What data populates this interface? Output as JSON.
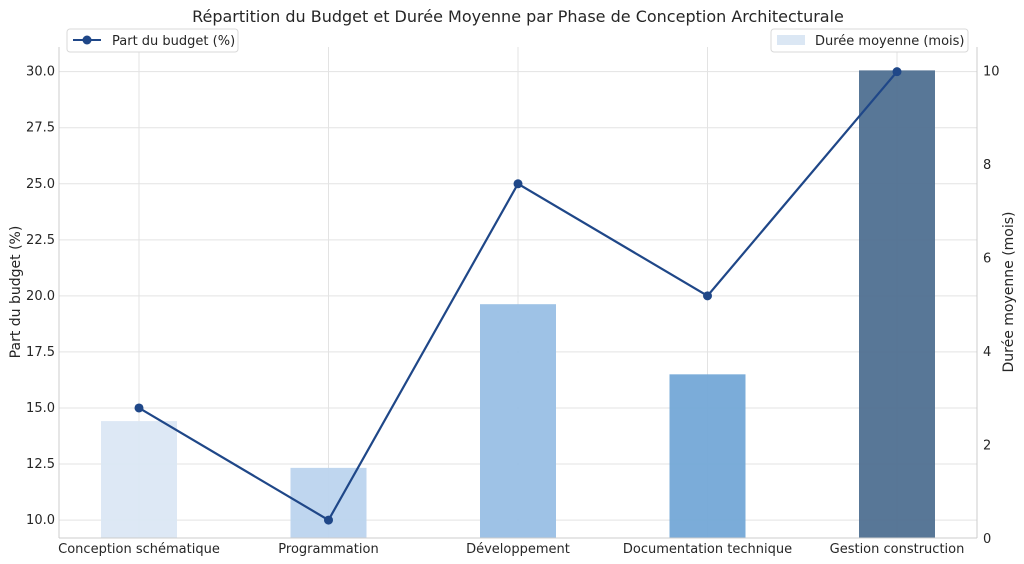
{
  "chart_data": {
    "type": "bar+line",
    "title": "Répartition du Budget et Durée Moyenne par Phase de Conception Architecturale",
    "categories": [
      "Conception schématique",
      "Programmation",
      "Développement",
      "Documentation technique",
      "Gestion construction"
    ],
    "series": [
      {
        "name": "Part du budget (%)",
        "kind": "line",
        "axis": "left",
        "color": "#1f4788",
        "values": [
          15,
          10,
          25,
          20,
          30
        ]
      },
      {
        "name": "Durée moyenne (mois)",
        "kind": "bar",
        "axis": "right",
        "colors": [
          "#dbe7f4",
          "#bcd4ee",
          "#99bfe5",
          "#74a8d7",
          "#4f7091"
        ],
        "values": [
          2.5,
          1.5,
          5,
          3.5,
          10
        ]
      }
    ],
    "ylabel_left": "Part du budget (%)",
    "ylabel_right": "Durée moyenne (mois)",
    "ylim_left": [
      9.2,
      31.1
    ],
    "ylim_right": [
      0,
      10.5
    ],
    "yticks_left": [
      "10.0",
      "12.5",
      "15.0",
      "17.5",
      "20.0",
      "22.5",
      "25.0",
      "27.5",
      "30.0"
    ],
    "yticks_right": [
      "0",
      "2",
      "4",
      "6",
      "8",
      "10"
    ],
    "grid": true,
    "legend_left_placement": "top-left",
    "legend_right_placement": "top-right"
  }
}
